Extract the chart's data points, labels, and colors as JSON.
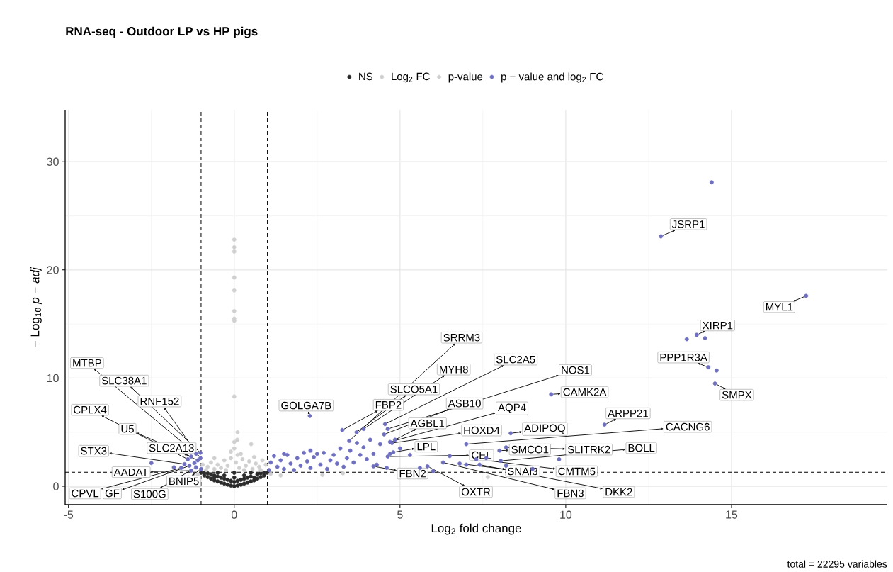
{
  "chart_data": {
    "type": "scatter",
    "title": "RNA-seq - Outdoor LP vs HP pigs",
    "xlabel": "Log$_{2}$ fold change",
    "ylabel": "− Log$_{10}$ *p* − *adj*",
    "xlim": [
      -5.1,
      19.7
    ],
    "ylim": [
      -1.7,
      34.8
    ],
    "xticks": [
      -5,
      0,
      5,
      10,
      15
    ],
    "yticks": [
      0,
      10,
      20,
      30
    ],
    "grid": true,
    "legend": "top",
    "marker": "circle",
    "ref_lines": [
      {
        "axis": "x",
        "value": -1,
        "line_style": "dashed"
      },
      {
        "axis": "x",
        "value": 1,
        "line_style": "dashed"
      },
      {
        "axis": "y",
        "value": 1.3,
        "line_style": "dashed"
      }
    ],
    "series": [
      {
        "name": "NS",
        "color": "#2b2b2b",
        "x": [
          -1.0,
          -0.9,
          -0.8,
          -0.7,
          -0.6,
          -0.5,
          -0.4,
          -0.3,
          -0.2,
          -0.1,
          0,
          0.1,
          0.2,
          0.3,
          0.4,
          0.5,
          0.6,
          0.7,
          0.8,
          0.9,
          1.0,
          -0.9,
          -0.8,
          -0.7,
          -0.6,
          -0.5,
          -0.4,
          -0.3,
          -0.2,
          -0.1,
          0,
          0.1,
          0.2,
          0.3,
          0.4,
          0.5,
          0.6,
          0.7,
          0.8,
          0.9,
          -0.5,
          0,
          0.5,
          -0.3,
          0.3,
          0,
          -0.6,
          0.6
        ],
        "values": [
          1.25,
          1.0,
          0.85,
          0.7,
          0.55,
          0.45,
          0.35,
          0.25,
          0.15,
          0.07,
          0.01,
          0.07,
          0.15,
          0.25,
          0.35,
          0.45,
          0.55,
          0.7,
          0.85,
          1.0,
          1.25,
          1.25,
          1.2,
          1.1,
          1.0,
          0.9,
          0.8,
          0.7,
          0.6,
          0.5,
          0.4,
          0.5,
          0.6,
          0.7,
          0.8,
          0.9,
          null,
          1.1,
          1.2,
          1.25,
          1.25,
          1.25,
          1.25,
          1.0,
          1.0,
          0.8,
          0.8,
          0.8
        ]
      },
      {
        "name": "Log$_{2}$ FC",
        "color": "#d0d0d0",
        "x": [
          2.66,
          3.28,
          7.65,
          1.1,
          1.4,
          -1.1
        ],
        "values": [
          1.05,
          1.2,
          0.85,
          1.15,
          1.0,
          1.1
        ]
      },
      {
        "name": "p-value",
        "color": "#d0d0d0",
        "x": [
          0,
          0,
          0,
          0,
          0,
          0,
          0,
          0,
          0,
          0.1,
          0.09,
          0.51,
          0,
          0,
          -0.95,
          -0.8,
          -0.7,
          -0.6,
          -0.5,
          -0.4,
          -0.3,
          -0.2,
          -0.1,
          0.05,
          0.15,
          0.25,
          0.35,
          0.45,
          0.55,
          0.65,
          0.75,
          0.85,
          0.95,
          -0.6,
          0.6,
          -0.25,
          0.3,
          -0.85,
          0.8,
          0.2,
          -0.1,
          0.1
        ],
        "values": [
          22.8,
          22.1,
          21.7,
          19.3,
          18.1,
          16.2,
          15.5,
          15.3,
          8.3,
          5.0,
          4.3,
          3.9,
          4.1,
          3.5,
          2.0,
          1.8,
          2.2,
          1.6,
          2.0,
          1.7,
          2.4,
          1.9,
          2.6,
          2.2,
          1.7,
          2.5,
          1.9,
          2.3,
          1.6,
          2.1,
          1.8,
          2.4,
          2.0,
          2.6,
          2.7,
          1.5,
          1.5,
          1.5,
          1.5,
          3.0,
          3.2,
          2.9
        ]
      },
      {
        "name": "p − value and log$_{2}$ FC",
        "color": "#6f6fc0",
        "x": [
          -2.5,
          -1.82,
          -1.2,
          1.05,
          1.1,
          1.2,
          1.3,
          1.4,
          1.5,
          1.6,
          1.7,
          1.8,
          1.9,
          2.0,
          2.1,
          2.2,
          2.3,
          2.4,
          2.5,
          2.6,
          2.7,
          2.8,
          2.9,
          3.0,
          3.1,
          3.2,
          3.3,
          3.4,
          3.5,
          3.6,
          3.7,
          3.8,
          3.9,
          4.0,
          4.1,
          4.2,
          4.3,
          4.4,
          4.6,
          4.7,
          5.0,
          5.3,
          5.6,
          6.0,
          6.5,
          7.0,
          7.6,
          8.2,
          9.0,
          9.8,
          1.5,
          2.3,
          14.4,
          13.65,
          14.2,
          14.55,
          -1.15,
          -1.02,
          -1.02,
          -1.4,
          -1.3,
          -1.1,
          -1.5,
          -1.3,
          -1.0,
          -1.6,
          -1.35,
          -1.15,
          2.28,
          3.47,
          3.9,
          4.55,
          3.69,
          3.26,
          4.52,
          4.63,
          4.7,
          4.85,
          9.56,
          11.17,
          4.76,
          8.34,
          7.0,
          4.8,
          4.63,
          8.0,
          8.2,
          8.04,
          4.2,
          6.8,
          7.3,
          5.83,
          6.3,
          7.4,
          12.87,
          17.25,
          13.95,
          14.3,
          14.5
        ],
        "values": [
          2.15,
          1.75,
          2.15,
          1.5,
          2.2,
          2.8,
          1.8,
          2.4,
          1.6,
          2.9,
          2.1,
          1.5,
          2.6,
          1.9,
          3.1,
          2.3,
          1.7,
          2.7,
          3.0,
          2.0,
          3.1,
          1.6,
          2.4,
          2.9,
          2.1,
          3.5,
          1.8,
          2.6,
          3.3,
          2.2,
          4.0,
          2.9,
          3.6,
          2.5,
          4.3,
          3.0,
          2.0,
          3.9,
          1.7,
          3.0,
          3.5,
          2.9,
          1.7,
          1.4,
          2.8,
          2.0,
          2.6,
          1.9,
          1.6,
          2.5,
          3.0,
          3.3,
          28.1,
          13.6,
          13.7,
          10.7,
          3.0,
          3.1,
          2.6,
          2.5,
          2.75,
          2.4,
          2.05,
          1.45,
          1.6,
          1.7,
          1.9,
          1.75,
          6.5,
          4.2,
          5.3,
          5.75,
          5.0,
          5.2,
          4.8,
          5.3,
          4.1,
          4.3,
          8.5,
          5.7,
          4.0,
          4.9,
          3.9,
          3.15,
          2.75,
          3.3,
          3.6,
          2.35,
          1.85,
          2.1,
          2.5,
          1.85,
          2.2,
          2.0,
          23.1,
          17.6,
          14.0,
          11.0,
          9.5
        ]
      }
    ],
    "annotations": [
      {
        "text": "MTBP",
        "x": -1.15,
        "y": 3.0
      },
      {
        "text": "SLC38A1",
        "x": -1.02,
        "y": 3.1
      },
      {
        "text": "RNF152",
        "x": -1.02,
        "y": 2.6
      },
      {
        "text": "CPLX4",
        "x": -1.4,
        "y": 2.5
      },
      {
        "text": "U5",
        "x": -1.3,
        "y": 2.75
      },
      {
        "text": "SLC2A13",
        "x": -1.1,
        "y": 2.4
      },
      {
        "text": "STX3",
        "x": -1.5,
        "y": 2.05
      },
      {
        "text": "AADAT",
        "x": -1.3,
        "y": 1.45
      },
      {
        "text": "BNIP5",
        "x": -1.0,
        "y": 1.6
      },
      {
        "text": "CPVL",
        "x": -1.6,
        "y": 1.7
      },
      {
        "text": "GF",
        "x": -1.35,
        "y": 1.9
      },
      {
        "text": "S100G",
        "x": -1.15,
        "y": 1.75
      },
      {
        "text": "GOLGA7B",
        "x": 2.28,
        "y": 6.5
      },
      {
        "text": "SRRM3",
        "x": 3.47,
        "y": 4.2
      },
      {
        "text": "MYH8",
        "x": 3.9,
        "y": 5.3
      },
      {
        "text": "SLC2A5",
        "x": 4.55,
        "y": 5.75
      },
      {
        "text": "SLCO5A1",
        "x": 3.69,
        "y": 5.0
      },
      {
        "text": "FBP2",
        "x": 3.26,
        "y": 5.2
      },
      {
        "text": "ASB10",
        "x": 4.52,
        "y": 4.8
      },
      {
        "text": "NOS1",
        "x": 4.63,
        "y": 5.3
      },
      {
        "text": "AQP4",
        "x": 4.7,
        "y": 4.1
      },
      {
        "text": "AGBL1",
        "x": 4.85,
        "y": 4.3
      },
      {
        "text": "CAMK2A",
        "x": 9.56,
        "y": 8.5
      },
      {
        "text": "ARPP21",
        "x": 11.17,
        "y": 5.7
      },
      {
        "text": "HOXD4",
        "x": 4.76,
        "y": 4.0
      },
      {
        "text": "ADIPOQ",
        "x": 8.34,
        "y": 4.9
      },
      {
        "text": "CACNG6",
        "x": 7.0,
        "y": 3.9
      },
      {
        "text": "LPL",
        "x": 4.8,
        "y": 3.15
      },
      {
        "text": "CEL",
        "x": 4.63,
        "y": 2.75
      },
      {
        "text": "SMCO1",
        "x": 8.0,
        "y": 3.3
      },
      {
        "text": "SLITRK2",
        "x": 8.2,
        "y": 3.6
      },
      {
        "text": "BOLL",
        "x": 8.04,
        "y": 2.35
      },
      {
        "text": "FBN2",
        "x": 4.2,
        "y": 1.85
      },
      {
        "text": "SNAI3",
        "x": 6.8,
        "y": 2.1
      },
      {
        "text": "CMTM5",
        "x": 7.3,
        "y": 2.5
      },
      {
        "text": "OXTR",
        "x": 5.83,
        "y": 1.85
      },
      {
        "text": "FBN3",
        "x": 6.3,
        "y": 2.2
      },
      {
        "text": "DKK2",
        "x": 7.4,
        "y": 2.0
      },
      {
        "text": "JSRP1",
        "x": 12.87,
        "y": 23.1
      },
      {
        "text": "MYL1",
        "x": 17.25,
        "y": 17.6
      },
      {
        "text": "XIRP1",
        "x": 13.95,
        "y": 14.0
      },
      {
        "text": "PPP1R3A",
        "x": 14.3,
        "y": 11.0
      },
      {
        "text": "SMPX",
        "x": 14.5,
        "y": 9.5
      },
      "total = 22295 variables"
    ]
  }
}
